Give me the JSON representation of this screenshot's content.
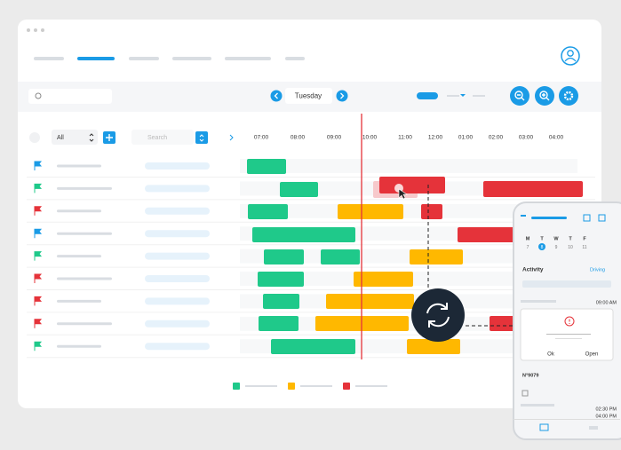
{
  "toolbar": {
    "day": "Tuesday"
  },
  "filters": {
    "group": "All",
    "search": "Search"
  },
  "timeline": {
    "hours": [
      "07:00",
      "08:00",
      "09:00",
      "10:00",
      "11:00",
      "12:00",
      "01:00",
      "02:00",
      "03:00",
      "04:00"
    ]
  },
  "phone": {
    "weekdays": [
      "M",
      "T",
      "W",
      "T",
      "F"
    ],
    "dates": [
      "7",
      "8",
      "9",
      "10",
      "11"
    ],
    "section": "Activity",
    "status": "Driving",
    "dialog": {
      "ok": "Ok",
      "open": "Open"
    },
    "entries": [
      {
        "time": "09:00 AM"
      },
      {
        "id": "N°9079",
        "start": "02:30 PM",
        "end": "04:00 PM"
      }
    ]
  }
}
